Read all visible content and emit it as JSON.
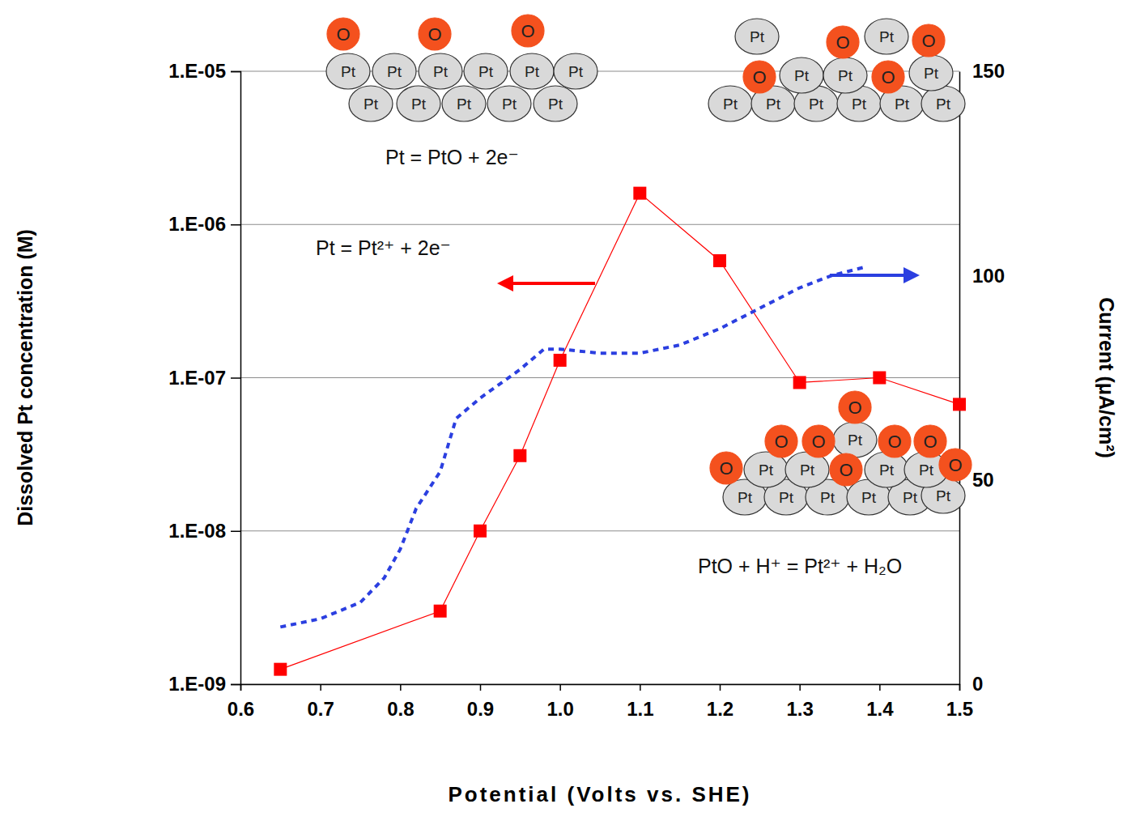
{
  "chart_data": {
    "type": "line",
    "xlabel": "Potential (Volts vs. SHE)",
    "ylabel": "Dissolved Pt concentration (M)",
    "y2label": "Current (μA/cm²)",
    "log": "y",
    "grid": true,
    "xlim": [
      0.6,
      1.5
    ],
    "xticks": [
      0.6,
      0.7,
      0.8,
      0.9,
      {
        "value": 1,
        "label": "1.0"
      },
      1.1,
      1.2,
      1.3,
      1.4,
      1.5
    ],
    "ylim": [
      1e-09,
      1e-05
    ],
    "yticks": [
      {
        "value": 1e-09,
        "label": "1.E-09"
      },
      {
        "value": 1e-08,
        "label": "1.E-08"
      },
      {
        "value": 1e-07,
        "label": "1.E-07"
      },
      {
        "value": 1e-06,
        "label": "1.E-06"
      },
      {
        "value": 1e-05,
        "label": "1.E-05"
      }
    ],
    "y2lim": [
      0,
      150
    ],
    "y2ticks": [
      0,
      50,
      100,
      150
    ],
    "series": [
      {
        "type": "line",
        "color": "#ff0000",
        "marker": "square",
        "line_style": "solid",
        "x": [
          0.65,
          0.85,
          0.9,
          0.95,
          1.0,
          1.1,
          1.2,
          1.3,
          1.4,
          1.5
        ],
        "values": [
          1.25e-09,
          3e-09,
          1e-08,
          3.1e-08,
          1.3e-07,
          1.6e-06,
          5.8e-07,
          9.3e-08,
          1e-07,
          6.7e-08
        ]
      },
      {
        "type": "line",
        "color": "#2b3fe0",
        "line_style": "dashed",
        "axis": "y2",
        "x": [
          0.65,
          0.7,
          0.75,
          0.78,
          0.8,
          0.82,
          0.85,
          0.87,
          0.9,
          0.95,
          0.98,
          1.0,
          1.05,
          1.1,
          1.15,
          1.2,
          1.25,
          1.3,
          1.34,
          1.38
        ],
        "values": [
          14,
          16,
          20,
          26,
          33,
          43,
          52,
          65,
          70,
          77,
          82,
          82,
          81,
          81,
          83,
          87,
          92,
          97,
          100,
          102
        ]
      }
    ],
    "annotations": [
      "Pt = PtO + 2e⁻",
      "Pt = Pt²⁺ + 2e⁻",
      "PtO + H⁺ = Pt²⁺ + H₂O",
      "Pt",
      "O"
    ]
  }
}
